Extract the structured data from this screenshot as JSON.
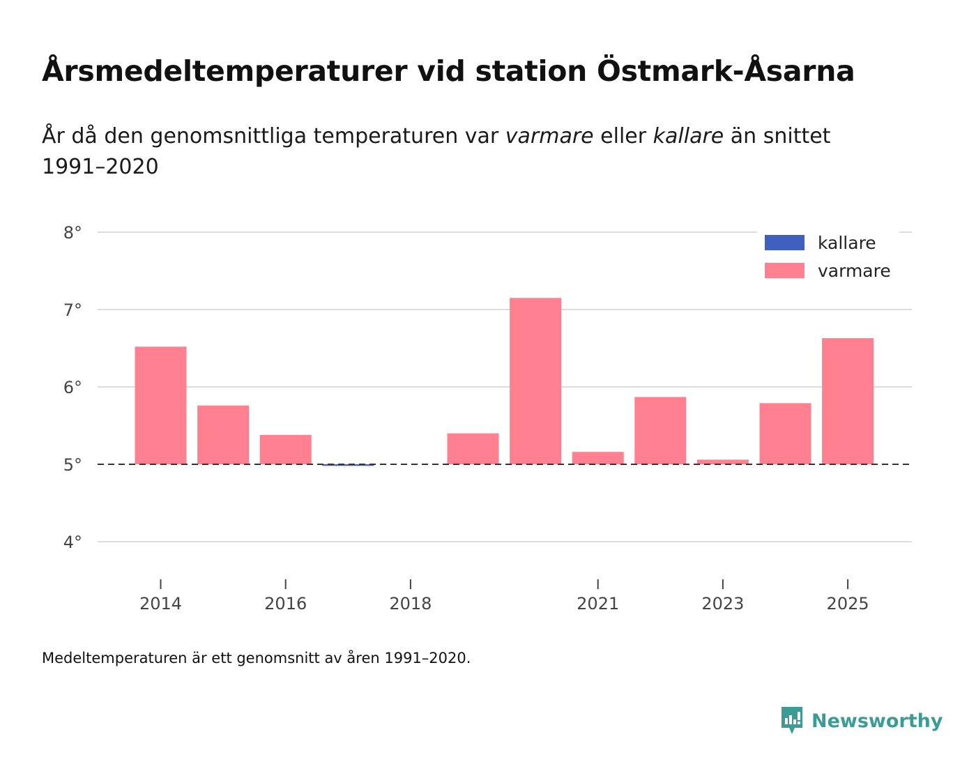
{
  "title": "Årsmedeltemperaturer vid station Östmark-Åsarna",
  "subtitle": {
    "part1": "År då den genomsnittliga temperaturen var ",
    "warm_word": "varmare",
    "part2": " eller ",
    "cold_word": "kallare",
    "part3": " än snittet 1991–2020"
  },
  "footnote": "Medeltemperaturen är ett genomsnitt av åren 1991–2020.",
  "brand": {
    "name": "Newsworthy",
    "icon": "newsworthy-logo-icon",
    "color": "#3a9c95"
  },
  "chart_data": {
    "type": "bar",
    "title": "Årsmedeltemperaturer vid station Östmark-Åsarna",
    "xlabel": "",
    "ylabel": "",
    "baseline": 5.0,
    "baseline_style": "dashed",
    "ylim": [
      3.5,
      8.0
    ],
    "y_ticks": [
      {
        "value": 4,
        "label": "4°"
      },
      {
        "value": 5,
        "label": "5°"
      },
      {
        "value": 6,
        "label": "6°"
      },
      {
        "value": 7,
        "label": "7°"
      },
      {
        "value": 8,
        "label": "8°"
      }
    ],
    "x_ticks": [
      2014,
      2016,
      2018,
      2021,
      2023,
      2025
    ],
    "x_tick_labels": [
      "2014",
      "2016",
      "2018",
      "2021",
      "2023",
      "2025"
    ],
    "grid": true,
    "legend_position": "top-right",
    "series": [
      {
        "name": "kallare",
        "color": "#4060c0"
      },
      {
        "name": "varmare",
        "color": "#ff8090"
      }
    ],
    "bars": [
      {
        "year": 2014,
        "value": 6.52,
        "series": "varmare"
      },
      {
        "year": 2015,
        "value": 5.76,
        "series": "varmare"
      },
      {
        "year": 2016,
        "value": 5.38,
        "series": "varmare"
      },
      {
        "year": 2017,
        "value": 4.98,
        "series": "kallare"
      },
      {
        "year": 2019,
        "value": 5.4,
        "series": "varmare"
      },
      {
        "year": 2020,
        "value": 7.15,
        "series": "varmare"
      },
      {
        "year": 2021,
        "value": 5.16,
        "series": "varmare"
      },
      {
        "year": 2022,
        "value": 5.87,
        "series": "varmare"
      },
      {
        "year": 2023,
        "value": 5.06,
        "series": "varmare"
      },
      {
        "year": 2024,
        "value": 5.79,
        "series": "varmare"
      },
      {
        "year": 2025,
        "value": 6.63,
        "series": "varmare"
      }
    ]
  }
}
